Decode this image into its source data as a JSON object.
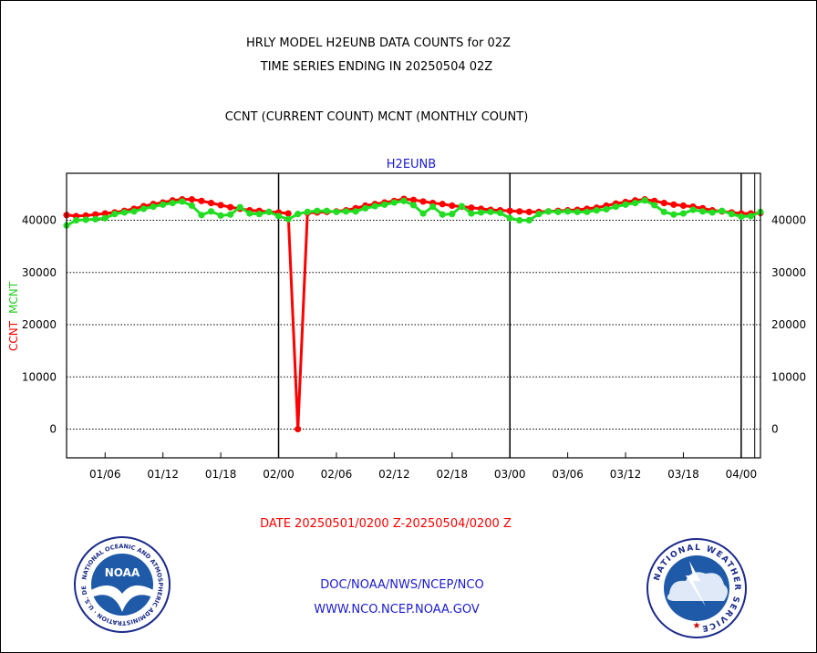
{
  "header": {
    "title_line1": "HRLY MODEL H2EUNB DATA COUNTS for 02Z",
    "title_line2": "TIME SERIES ENDING IN 20250504 02Z",
    "subtitle": "CCNT (CURRENT COUNT) MCNT (MONTHLY COUNT)"
  },
  "footer": {
    "date_range": "DATE 20250501/0200 Z-20250504/0200 Z",
    "org_line": "DOC/NOAA/NWS/NCEP/NCO",
    "website": "WWW.NCO.NCEP.NOAA.GOV",
    "noaa_logo_text": "NOAA",
    "noaa_ring_text": "NATIONAL OCEANIC AND ATMOSPHERIC ADMINISTRATION · U.S. DEPARTMENT OF COMMERCE ·",
    "nws_ring_text": "NATIONAL WEATHER SERVICE"
  },
  "colors": {
    "ccnt": "#ff0000",
    "mcnt": "#22dd22",
    "label_blue": "#1a1ad0"
  },
  "chart_data": {
    "type": "line",
    "title": "H2EUNB",
    "ylabel_series": [
      "CCNT",
      "MCNT"
    ],
    "ylim": [
      -5500,
      49000
    ],
    "yticks": [
      0,
      10000,
      20000,
      30000,
      40000
    ],
    "ytick_labels": [
      "0",
      "10000",
      "20000",
      "30000",
      "40000"
    ],
    "xlim": [
      0,
      72
    ],
    "xticks": [
      4,
      10,
      16,
      22,
      28,
      34,
      40,
      46,
      52,
      58,
      64,
      70
    ],
    "xtick_labels": [
      "01/06",
      "01/12",
      "01/18",
      "02/00",
      "02/06",
      "02/12",
      "02/18",
      "03/00",
      "03/06",
      "03/12",
      "03/18",
      "04/00"
    ],
    "day_boundaries": [
      22,
      46,
      70
    ],
    "grid": "horizontal dotted",
    "series": [
      {
        "name": "CCNT",
        "color": "#ff0000",
        "x": [
          0,
          1,
          2,
          3,
          4,
          5,
          6,
          7,
          8,
          9,
          10,
          11,
          12,
          13,
          14,
          15,
          16,
          17,
          18,
          19,
          20,
          21,
          22,
          23,
          24,
          25,
          26,
          27,
          28,
          29,
          30,
          31,
          32,
          33,
          34,
          35,
          36,
          37,
          38,
          39,
          40,
          41,
          42,
          43,
          44,
          45,
          46,
          47,
          48,
          49,
          50,
          51,
          52,
          53,
          54,
          55,
          56,
          57,
          58,
          59,
          60,
          61,
          62,
          63,
          64,
          65,
          66,
          67,
          68,
          69,
          70,
          71,
          72
        ],
        "values": [
          41000,
          40800,
          40900,
          41100,
          41300,
          41500,
          41800,
          42200,
          42700,
          43100,
          43400,
          43800,
          44000,
          44000,
          43700,
          43300,
          42900,
          42500,
          42200,
          41900,
          41800,
          41600,
          41500,
          41300,
          0,
          41400,
          41500,
          41600,
          41700,
          41900,
          42300,
          42800,
          43100,
          43400,
          43700,
          44100,
          43900,
          43600,
          43300,
          43100,
          42800,
          42600,
          42400,
          42200,
          42000,
          41900,
          41800,
          41700,
          41600,
          41600,
          41700,
          41800,
          41900,
          42000,
          42200,
          42400,
          42800,
          43200,
          43500,
          43800,
          44000,
          43700,
          43300,
          43000,
          42800,
          42600,
          42300,
          41900,
          41700,
          41500,
          41300,
          41300,
          41400
        ]
      },
      {
        "name": "MCNT",
        "color": "#22dd22",
        "x": [
          0,
          1,
          2,
          3,
          4,
          5,
          6,
          7,
          8,
          9,
          10,
          11,
          12,
          13,
          14,
          15,
          16,
          17,
          18,
          19,
          20,
          21,
          22,
          23,
          24,
          25,
          26,
          27,
          28,
          29,
          30,
          31,
          32,
          33,
          34,
          35,
          36,
          37,
          38,
          39,
          40,
          41,
          42,
          43,
          44,
          45,
          46,
          47,
          48,
          49,
          50,
          51,
          52,
          53,
          54,
          55,
          56,
          57,
          58,
          59,
          60,
          61,
          62,
          63,
          64,
          65,
          66,
          67,
          68,
          69,
          70,
          71,
          72
        ],
        "values": [
          39000,
          40000,
          40100,
          40200,
          40400,
          41200,
          41500,
          41700,
          42200,
          42600,
          43000,
          43300,
          43600,
          42800,
          41000,
          41700,
          40900,
          41100,
          42500,
          41300,
          41200,
          41600,
          40800,
          40200,
          41200,
          41600,
          41800,
          41800,
          41600,
          41700,
          41700,
          42300,
          42700,
          43000,
          43400,
          43700,
          42900,
          41300,
          42600,
          41100,
          41200,
          42700,
          41300,
          41500,
          41600,
          41400,
          40400,
          40000,
          40000,
          41200,
          41700,
          41600,
          41700,
          41600,
          41600,
          41900,
          42100,
          42600,
          43000,
          43300,
          43800,
          42900,
          41600,
          41100,
          41300,
          42000,
          41700,
          41500,
          41800,
          41200,
          40700,
          40800,
          41600
        ]
      }
    ]
  }
}
